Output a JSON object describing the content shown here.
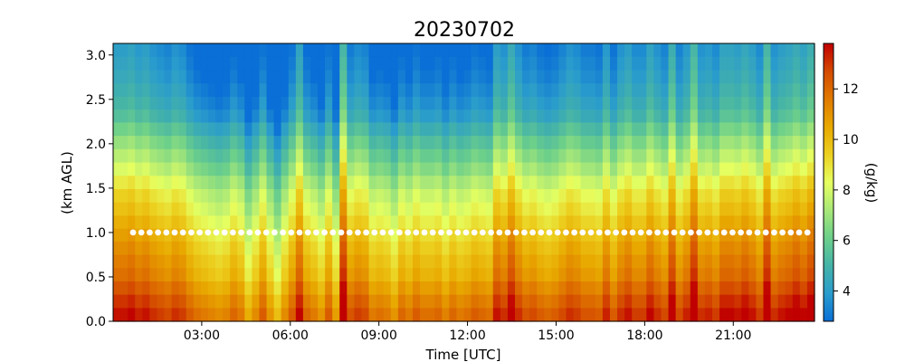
{
  "chart_data": {
    "type": "heatmap",
    "title": "20230702",
    "xlabel": "Time [UTC]",
    "ylabel": "(km AGL)",
    "colorbar_label": "(g/kg)",
    "x_ticks": [
      "03:00",
      "06:00",
      "09:00",
      "12:00",
      "15:00",
      "18:00",
      "21:00"
    ],
    "x_tick_hours": [
      3,
      6,
      9,
      12,
      15,
      18,
      21
    ],
    "xlim_hours": [
      0,
      23.75
    ],
    "y_ticks": [
      "0.0",
      "0.5",
      "1.0",
      "1.5",
      "2.0",
      "2.5",
      "3.0"
    ],
    "y_tick_values": [
      0.0,
      0.5,
      1.0,
      1.5,
      2.0,
      2.5,
      3.0
    ],
    "ylim_km": [
      0,
      3.13
    ],
    "colorbar_ticks": [
      "4",
      "6",
      "8",
      "10",
      "12"
    ],
    "colorbar_tick_values": [
      4,
      6,
      8,
      10,
      12
    ],
    "color_range": [
      2.8,
      13.8
    ],
    "colormap": [
      "#0a6fd6",
      "#2a9ccc",
      "#45b3a8",
      "#6ccf8a",
      "#a8e878",
      "#e6ff60",
      "#ecd020",
      "#e8a800",
      "#e07a00",
      "#d44a00",
      "#c00000"
    ],
    "marker_line": {
      "height_km": 1.0,
      "color": "#ffffff",
      "style": "dotted"
    },
    "heights_km": [
      0.08,
      0.23,
      0.38,
      0.53,
      0.68,
      0.83,
      0.98,
      1.12,
      1.27,
      1.42,
      1.57,
      1.72,
      1.87,
      2.02,
      2.17,
      2.32,
      2.46,
      2.61,
      2.76,
      2.91,
      3.06
    ],
    "profile_mean_gkg": [
      12.9,
      12.4,
      11.8,
      11.2,
      10.9,
      10.5,
      10.1,
      9.7,
      9.2,
      8.8,
      8.2,
      7.5,
      6.9,
      6.3,
      5.6,
      4.9,
      4.5,
      4.2,
      3.9,
      3.7,
      3.5
    ],
    "column_anomaly_gkg": [
      0.3,
      0.3,
      0.4,
      0.2,
      0.3,
      0.1,
      0.0,
      -0.1,
      0.1,
      0.0,
      -0.3,
      -0.5,
      -0.6,
      -0.7,
      -0.8,
      -0.7,
      -0.4,
      -0.6,
      -1.2,
      -0.8,
      -0.3,
      -0.9,
      -1.4,
      -0.8,
      -0.3,
      0.4,
      -0.4,
      -0.6,
      -0.9,
      -0.3,
      -1.0,
      0.9,
      -0.2,
      0.0,
      -0.1,
      -0.6,
      -0.5,
      -0.6,
      -0.9,
      -0.4,
      -0.6,
      -0.3,
      -0.5,
      -0.5,
      -0.4,
      -0.7,
      -0.4,
      -0.6,
      -0.5,
      -0.3,
      -0.4,
      -0.5,
      0.3,
      0.1,
      0.6,
      0.1,
      -0.2,
      -0.1,
      -0.3,
      -0.4,
      -0.3,
      -0.1,
      0.1,
      0.0,
      -0.2,
      -0.2,
      -0.3,
      0.2,
      -0.3,
      0.1,
      0.3,
      0.0,
      0.0,
      0.4,
      0.1,
      -0.1,
      0.7,
      -0.1,
      0.2,
      0.9,
      0.1,
      0.2,
      0.0,
      0.4,
      0.4,
      0.3,
      0.5,
      0.3,
      0.0,
      0.9,
      0.1,
      0.3,
      0.4,
      0.6,
      0.4,
      0.7
    ]
  }
}
